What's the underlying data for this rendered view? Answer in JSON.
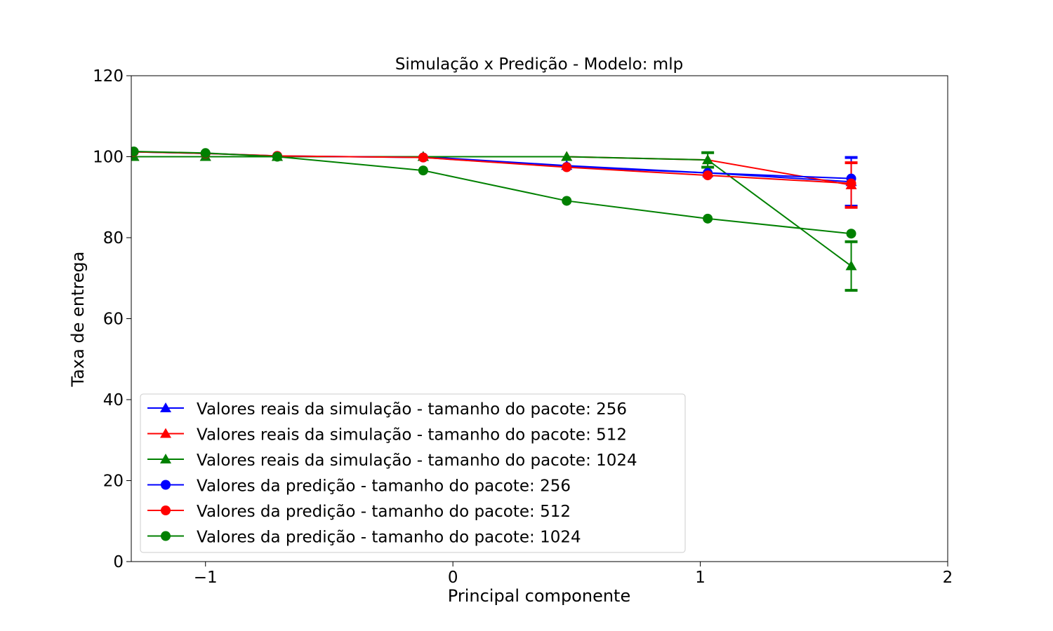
{
  "chart_data": {
    "type": "line",
    "title": "Simulação x Predição - Modelo: mlp",
    "xlabel": "Principal componente",
    "ylabel": "Taxa de entrega",
    "xlim": [
      -1.3,
      2.0
    ],
    "ylim": [
      0,
      120
    ],
    "xticks": [
      -1,
      0,
      1,
      2
    ],
    "xtick_labels": [
      "−1",
      "0",
      "1",
      "2"
    ],
    "yticks": [
      0,
      20,
      40,
      60,
      80,
      100,
      120
    ],
    "ytick_labels": [
      "0",
      "20",
      "40",
      "60",
      "80",
      "100",
      "120"
    ],
    "grid": false,
    "legend_position": "lower-left",
    "series": [
      {
        "name": "Valores reais da simulação - tamanho do pacote: 256",
        "color": "#0000ff",
        "marker": "triangle",
        "x": [
          -1.29,
          -1.0,
          -0.71,
          -0.12,
          0.46,
          1.03,
          1.61
        ],
        "y": [
          100.0,
          100.0,
          100.0,
          100.0,
          97.8,
          96.0,
          93.8
        ],
        "yerr": [
          0,
          0,
          0,
          0,
          0,
          0,
          6.0
        ]
      },
      {
        "name": "Valores reais da simulação - tamanho do pacote: 512",
        "color": "#ff0000",
        "marker": "triangle",
        "x": [
          -1.29,
          -1.0,
          -0.71,
          -0.12,
          0.46,
          1.03,
          1.61
        ],
        "y": [
          100.0,
          100.0,
          100.0,
          100.0,
          100.0,
          99.2,
          93.0
        ],
        "yerr": [
          0,
          0,
          0,
          0,
          0,
          0,
          5.5
        ]
      },
      {
        "name": "Valores reais da simulação - tamanho do pacote: 1024",
        "color": "#008000",
        "marker": "triangle",
        "x": [
          -1.29,
          -1.0,
          -0.71,
          -0.12,
          0.46,
          1.03,
          1.61
        ],
        "y": [
          100.0,
          100.0,
          100.0,
          100.0,
          100.0,
          99.2,
          73.0
        ],
        "yerr": [
          0,
          0,
          0,
          0,
          0,
          1.8,
          6.0
        ]
      },
      {
        "name": "Valores da predição - tamanho do pacote: 256",
        "color": "#0000ff",
        "marker": "circle",
        "x": [
          -1.29,
          -1.0,
          -0.71,
          -0.12,
          0.46,
          1.03,
          1.61
        ],
        "y": [
          101.2,
          100.8,
          100.2,
          99.8,
          97.5,
          96.0,
          94.6
        ],
        "yerr": [
          0,
          0,
          0,
          0,
          0,
          0,
          0
        ]
      },
      {
        "name": "Valores da predição - tamanho do pacote: 512",
        "color": "#ff0000",
        "marker": "circle",
        "x": [
          -1.29,
          -1.0,
          -0.71,
          -0.12,
          0.46,
          1.03,
          1.61
        ],
        "y": [
          101.2,
          100.8,
          100.2,
          99.8,
          97.4,
          95.4,
          93.4
        ],
        "yerr": [
          0,
          0,
          0,
          0,
          0,
          0,
          0
        ]
      },
      {
        "name": "Valores da predição - tamanho do pacote: 1024",
        "color": "#008000",
        "marker": "circle",
        "x": [
          -1.29,
          -1.0,
          -0.71,
          -0.12,
          0.46,
          1.03,
          1.61
        ],
        "y": [
          101.3,
          100.9,
          100.0,
          96.6,
          89.1,
          84.7,
          81.0
        ],
        "yerr": [
          0,
          0,
          0,
          0,
          0,
          0,
          0
        ]
      }
    ]
  }
}
